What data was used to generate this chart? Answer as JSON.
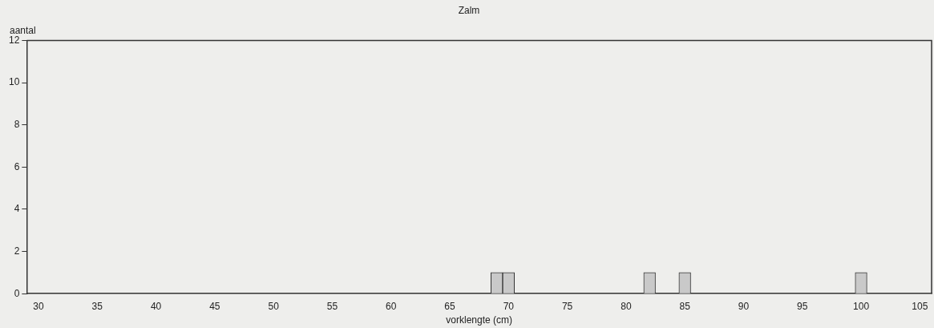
{
  "chart_data": {
    "type": "histogram",
    "title": "Zalm",
    "xlabel": "vorklengte (cm)",
    "ylabel": "aantal",
    "bins": [
      68.5,
      69.5,
      70.5,
      71.5,
      72.5,
      73.5,
      74.5,
      75.5,
      76.5,
      77.5,
      78.5,
      79.5,
      80.5,
      81.5,
      82.5,
      83.5,
      84.5,
      85.5,
      86.5,
      87.5,
      88.5,
      89.5,
      90.5,
      91.5,
      92.5,
      93.5,
      94.5,
      95.5,
      96.5,
      97.5,
      98.5,
      99.5,
      100.5
    ],
    "values": [
      1,
      1,
      0,
      0,
      0,
      0,
      0,
      0,
      0,
      0,
      0,
      0,
      0,
      1,
      0,
      0,
      1,
      0,
      0,
      0,
      0,
      0,
      0,
      0,
      0,
      0,
      0,
      0,
      0,
      0,
      0,
      1
    ],
    "color": "#c9c9c9",
    "xlim": [
      29,
      106
    ],
    "xticks": [
      30,
      35,
      40,
      45,
      50,
      55,
      60,
      65,
      70,
      75,
      80,
      85,
      90,
      95,
      100,
      105
    ],
    "ylim": [
      0,
      12
    ],
    "yticks": [
      0,
      2,
      4,
      6,
      8,
      10,
      12
    ],
    "grid": false
  }
}
